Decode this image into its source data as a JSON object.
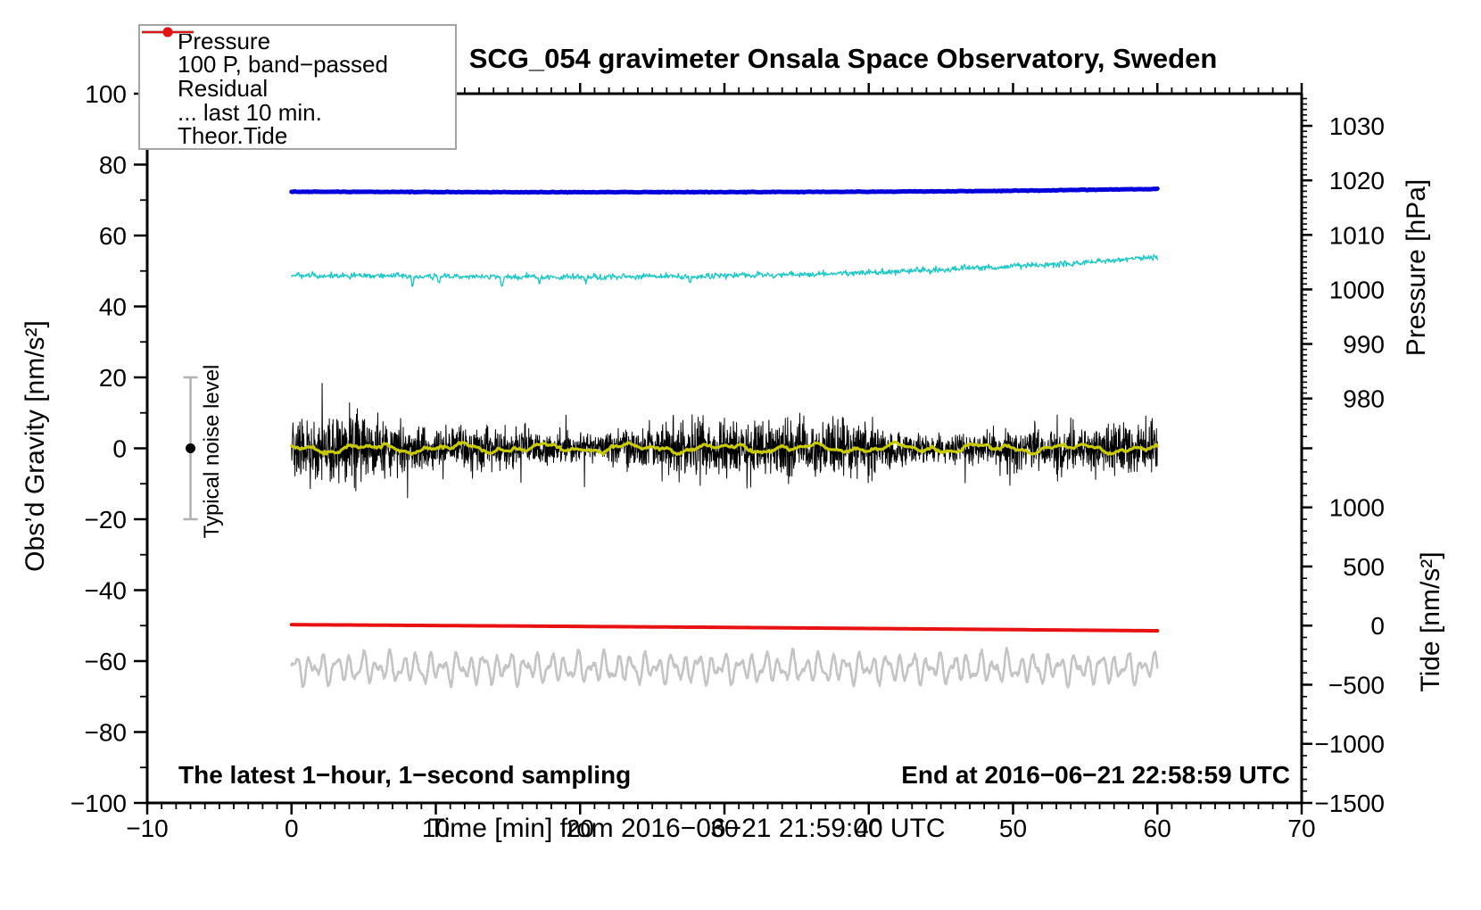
{
  "title": "SCG_054 gravimeter Onsala Space Observatory, Sweden",
  "annotations": {
    "sampling": "The latest 1−hour, 1−second sampling",
    "end": "End at 2016−06−21 22:58:59 UTC",
    "noise_label": "Typical noise level"
  },
  "colors": {
    "pressure": "#0000dd",
    "band_passed": "#1fc8c8",
    "residual": "#000000",
    "residual_smoothed": "#c9c900",
    "last_10_min": "#c4c4c4",
    "theor_tide": "#e81212",
    "noise_bar": "#b0b0b0",
    "axis": "#000000"
  },
  "legend": {
    "position": "top-left",
    "items": [
      {
        "label": "Pressure",
        "color": "#0000dd",
        "marker": "line-dot",
        "lw": 2
      },
      {
        "label": "100 P, band−passed",
        "color": "#1fc8c8",
        "marker": "line-dot",
        "lw": 2
      },
      {
        "label": "Residual",
        "color": "#000000",
        "marker": "line",
        "lw": 4
      },
      {
        "label": "... last 10 min.",
        "color": "#c4c4c4",
        "marker": "line",
        "lw": 4
      },
      {
        "label": "Theor.Tide",
        "color": "#e81212",
        "marker": "line-dot",
        "lw": 2
      }
    ]
  },
  "chart_data": {
    "type": "line",
    "title": "SCG_054 gravimeter Onsala Space Observatory, Sweden",
    "grid": false,
    "axes": {
      "x": {
        "label": "Time [min] from 2016−06−21 21:59:00 UTC",
        "range": [
          -10,
          70
        ],
        "major": [
          -10,
          0,
          10,
          20,
          30,
          40,
          50,
          60,
          70
        ],
        "major_labels": [
          "−10",
          "0",
          "10",
          "20",
          "30",
          "40",
          "50",
          "60",
          "70"
        ],
        "minor_step": 1
      },
      "left": {
        "label": "Obs’d Gravity [nm/s²]",
        "range": [
          -100,
          100
        ],
        "major": [
          -100,
          -80,
          -60,
          -40,
          -20,
          0,
          20,
          40,
          60,
          80,
          100
        ],
        "major_labels": [
          "−100",
          "−80",
          "−60",
          "−40",
          "−20",
          "0",
          "20",
          "40",
          "60",
          "80",
          "100"
        ],
        "minor_step": 10
      },
      "pressure": {
        "label": "Pressure [hPa]",
        "range": [
          977,
          1035.9
        ],
        "major": [
          1030,
          1020,
          1010,
          1000,
          990,
          980
        ],
        "major_labels": [
          "1030",
          "1020",
          "1010",
          "1000",
          "990",
          "980"
        ],
        "minor_step": 1
      },
      "tide": {
        "label": "Tide [nm/s²]",
        "range": [
          -1500,
          1745
        ],
        "major": [
          1500,
          1000,
          500,
          0,
          -500,
          -1000,
          -1500
        ],
        "major_labels": [
          null,
          "1000",
          "500",
          "0",
          "−500",
          "−1000",
          "−1500"
        ],
        "minor_step": 100
      }
    },
    "noise_bar": {
      "x": -7,
      "center": 0,
      "upper": 20,
      "lower": -20,
      "axis": "left"
    },
    "series": [
      {
        "name": "pressure",
        "legend": "Pressure",
        "axis": "pressure",
        "color": "#0000dd",
        "width": 5,
        "dt": 0.1,
        "seed": 3,
        "noise_sd": 0.03,
        "points": {
          "t": [
            0,
            8,
            16,
            24,
            32,
            40,
            46,
            52,
            56,
            60
          ],
          "v": [
            1017.92,
            1017.88,
            1017.84,
            1017.84,
            1017.86,
            1017.92,
            1018.0,
            1018.15,
            1018.3,
            1018.42
          ]
        }
      },
      {
        "name": "band-passed",
        "legend": "100 P, band−passed",
        "axis": "left",
        "color": "#1fc8c8",
        "width": 1.4,
        "dt": 0.05,
        "seed": 7,
        "noise_sd": 0.42,
        "points": {
          "t": [
            0,
            5,
            10,
            15,
            20,
            25,
            30,
            35,
            40,
            45,
            50,
            55,
            60
          ],
          "v": [
            48.8,
            48.6,
            48.45,
            48.3,
            48.25,
            48.4,
            48.65,
            49.0,
            49.6,
            50.4,
            51.3,
            52.4,
            53.8
          ]
        },
        "spikes": [
          {
            "t": 8.4,
            "dv": -3.4
          },
          {
            "t": 10.2,
            "dv": -1.8
          },
          {
            "t": 14.6,
            "dv": -3.0
          },
          {
            "t": 17.2,
            "dv": -1.4
          },
          {
            "t": 20.4,
            "dv": -1.8
          },
          {
            "t": 23.0,
            "dv": 1.2
          },
          {
            "t": 27.6,
            "dv": -2.0
          },
          {
            "t": 33.4,
            "dv": -1.2
          }
        ]
      },
      {
        "name": "residual",
        "legend": "Residual",
        "axis": "left",
        "color": "#000000",
        "width": 1,
        "dt": 0.02,
        "seed": 13,
        "noise_sd": 3.1,
        "spike_prob": 0.01,
        "spike_add": 8,
        "am": true,
        "points": {
          "t": [
            0,
            60
          ],
          "v": [
            0,
            0
          ]
        }
      },
      {
        "name": "residual-smoothed",
        "legend": null,
        "axis": "left",
        "color": "#c9c900",
        "width": 3.2,
        "dt": 0.1,
        "seed": 17,
        "noise_sd": 0.2,
        "osc": {
          "amps": [
            0.85,
            0.5,
            0.35
          ],
          "periods": [
            6.1,
            2.7,
            1.3
          ]
        },
        "points": {
          "t": [
            0,
            60
          ],
          "v": [
            0,
            0
          ]
        }
      },
      {
        "name": "theor-tide",
        "legend": "Theor.Tide",
        "axis": "tide",
        "color": "#e81212",
        "width": 4,
        "dt": 0.5,
        "seed": 19,
        "noise_sd": 0,
        "points": {
          "t": [
            0,
            15,
            30,
            45,
            60
          ],
          "v": [
            8,
            -3,
            -15,
            -29,
            -44
          ]
        }
      },
      {
        "name": "last-10-min",
        "legend": "... last 10 min.",
        "axis": "left",
        "color": "#c4c4c4",
        "width": 2.6,
        "dt": 0.04,
        "seed": 23,
        "noise_sd": 0.3,
        "osc": {
          "amps": [
            2.6,
            1.7,
            1.0
          ],
          "periods": [
            0.93,
            0.57,
            1.65
          ]
        },
        "points": {
          "t": [
            0,
            60
          ],
          "v": [
            -62,
            -62
          ]
        }
      }
    ]
  }
}
